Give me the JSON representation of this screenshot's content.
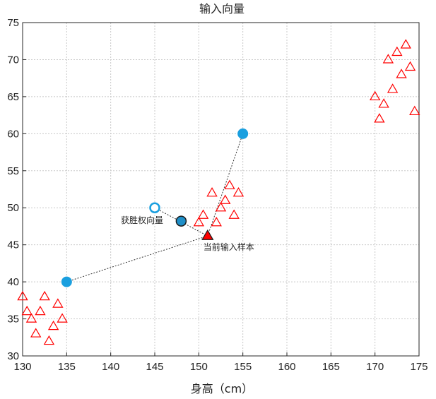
{
  "chart_data": {
    "type": "scatter",
    "title": "输入向量",
    "xlabel": "身高（cm）",
    "ylabel": "",
    "xlim": [
      130,
      175
    ],
    "ylim": [
      30,
      75
    ],
    "xticks": [
      130,
      135,
      140,
      145,
      150,
      155,
      160,
      165,
      170,
      175
    ],
    "yticks": [
      30,
      35,
      40,
      45,
      50,
      55,
      60,
      65,
      70,
      75
    ],
    "grid": true,
    "series": [
      {
        "marker": "open-triangle",
        "color": "#ff0000",
        "points": [
          [
            130,
            38
          ],
          [
            130.5,
            36
          ],
          [
            131,
            35
          ],
          [
            131.5,
            33
          ],
          [
            132,
            36
          ],
          [
            132.5,
            38
          ],
          [
            133,
            32
          ],
          [
            133.5,
            34
          ],
          [
            134,
            37
          ],
          [
            134.5,
            35
          ],
          [
            150,
            48
          ],
          [
            150.5,
            49
          ],
          [
            151.5,
            52
          ],
          [
            152,
            48
          ],
          [
            152.5,
            50
          ],
          [
            153,
            51
          ],
          [
            153.5,
            53
          ],
          [
            154,
            49
          ],
          [
            154.5,
            52
          ],
          [
            170,
            65
          ],
          [
            170.5,
            62
          ],
          [
            171,
            64
          ],
          [
            171.5,
            70
          ],
          [
            172,
            66
          ],
          [
            172.5,
            71
          ],
          [
            173,
            68
          ],
          [
            173.5,
            72
          ],
          [
            174,
            69
          ],
          [
            174.5,
            63
          ]
        ]
      }
    ],
    "special_points": {
      "neurons": {
        "color": "#1a9fdf",
        "points": [
          [
            135,
            40
          ],
          [
            155,
            60
          ]
        ]
      },
      "winner": {
        "color": "#1a9fdf",
        "point": [
          145,
          50
        ],
        "style": "open-circle"
      },
      "updated": {
        "color": "#1f8fc8",
        "point": [
          148,
          48.2
        ],
        "style": "filled-dark-edge"
      },
      "input_sample": {
        "color": "#ff0000",
        "point": [
          151,
          46.2
        ],
        "style": "filled-triangle"
      }
    },
    "connections": [
      [
        [
          135,
          40
        ],
        [
          151,
          46.2
        ]
      ],
      [
        [
          151,
          46.2
        ],
        [
          155,
          60
        ]
      ],
      [
        [
          145,
          50
        ],
        [
          151,
          46.2
        ]
      ]
    ],
    "annotations": [
      {
        "text": "获胜权向量",
        "at": [
          145,
          50
        ]
      },
      {
        "text": "当前输入样本",
        "at": [
          151,
          46.2
        ]
      }
    ]
  }
}
